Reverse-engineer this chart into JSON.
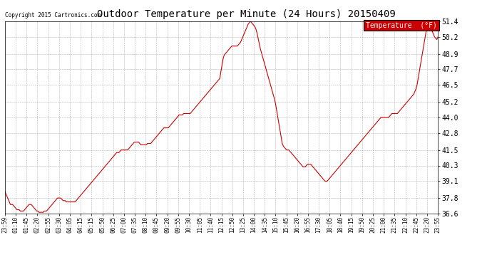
{
  "title": "Outdoor Temperature per Minute (24 Hours) 20150409",
  "copyright": "Copyright 2015 Cartronics.com",
  "legend_label": "Temperature  (°F)",
  "line_color": "#cc0000",
  "background_color": "#ffffff",
  "grid_color": "#aaaaaa",
  "yticks": [
    36.6,
    37.8,
    39.1,
    40.3,
    41.5,
    42.8,
    44.0,
    45.2,
    46.5,
    47.7,
    48.9,
    50.2,
    51.4
  ],
  "xtick_labels": [
    "23:59",
    "01:10",
    "01:45",
    "02:20",
    "02:55",
    "03:30",
    "04:05",
    "04:15",
    "05:15",
    "05:50",
    "06:25",
    "07:00",
    "07:35",
    "08:10",
    "08:45",
    "09:20",
    "09:55",
    "10:30",
    "11:05",
    "11:40",
    "12:15",
    "12:50",
    "13:25",
    "14:00",
    "14:35",
    "15:10",
    "15:45",
    "16:20",
    "16:55",
    "17:30",
    "18:05",
    "18:40",
    "19:15",
    "19:50",
    "20:25",
    "21:00",
    "21:35",
    "22:10",
    "22:45",
    "23:20",
    "23:55"
  ],
  "ymin": 36.6,
  "ymax": 51.4,
  "temp_data": [
    38.3,
    38.1,
    37.9,
    37.7,
    37.5,
    37.3,
    37.3,
    37.3,
    37.2,
    37.1,
    37.0,
    36.9,
    36.9,
    36.9,
    36.8,
    36.8,
    36.8,
    36.8,
    36.9,
    37.0,
    37.1,
    37.2,
    37.3,
    37.3,
    37.3,
    37.2,
    37.1,
    37.0,
    36.9,
    36.8,
    36.8,
    36.7,
    36.7,
    36.7,
    36.7,
    36.7,
    36.8,
    36.8,
    36.8,
    36.9,
    37.0,
    37.1,
    37.2,
    37.3,
    37.4,
    37.5,
    37.6,
    37.7,
    37.8,
    37.8,
    37.8,
    37.8,
    37.7,
    37.6,
    37.6,
    37.6,
    37.5,
    37.5,
    37.5,
    37.5,
    37.5,
    37.5,
    37.5,
    37.5,
    37.5,
    37.6,
    37.7,
    37.8,
    37.9,
    38.0,
    38.1,
    38.2,
    38.3,
    38.4,
    38.5,
    38.6,
    38.7,
    38.8,
    38.9,
    39.0,
    39.1,
    39.2,
    39.3,
    39.4,
    39.5,
    39.6,
    39.7,
    39.8,
    39.9,
    40.0,
    40.1,
    40.2,
    40.3,
    40.4,
    40.5,
    40.6,
    40.7,
    40.8,
    40.9,
    41.0,
    41.1,
    41.2,
    41.3,
    41.3,
    41.3,
    41.4,
    41.5,
    41.5,
    41.5,
    41.5,
    41.5,
    41.5,
    41.5,
    41.6,
    41.7,
    41.8,
    41.9,
    42.0,
    42.1,
    42.1,
    42.1,
    42.1,
    42.1,
    42.0,
    41.9,
    41.9,
    41.9,
    41.9,
    41.9,
    41.9,
    42.0,
    42.0,
    42.0,
    42.0,
    42.1,
    42.2,
    42.3,
    42.4,
    42.5,
    42.6,
    42.7,
    42.8,
    42.9,
    43.0,
    43.1,
    43.2,
    43.2,
    43.2,
    43.2,
    43.2,
    43.3,
    43.4,
    43.5,
    43.6,
    43.7,
    43.8,
    43.9,
    44.0,
    44.1,
    44.2,
    44.2,
    44.2,
    44.2,
    44.3,
    44.3,
    44.3,
    44.3,
    44.3,
    44.3,
    44.3,
    44.4,
    44.5,
    44.6,
    44.7,
    44.8,
    44.9,
    45.0,
    45.1,
    45.2,
    45.3,
    45.4,
    45.5,
    45.6,
    45.7,
    45.8,
    45.9,
    46.0,
    46.1,
    46.2,
    46.3,
    46.4,
    46.5,
    46.6,
    46.7,
    46.8,
    46.9,
    47.0,
    47.5,
    48.0,
    48.5,
    48.8,
    48.9,
    49.0,
    49.1,
    49.2,
    49.3,
    49.4,
    49.5,
    49.5,
    49.5,
    49.5,
    49.5,
    49.5,
    49.6,
    49.7,
    49.8,
    50.0,
    50.2,
    50.4,
    50.6,
    50.8,
    51.0,
    51.2,
    51.3,
    51.4,
    51.3,
    51.2,
    51.1,
    51.0,
    50.8,
    50.5,
    50.1,
    49.7,
    49.3,
    49.0,
    48.7,
    48.4,
    48.1,
    47.8,
    47.5,
    47.2,
    46.9,
    46.6,
    46.3,
    46.0,
    45.7,
    45.4,
    45.0,
    44.5,
    44.0,
    43.5,
    43.0,
    42.5,
    42.0,
    41.8,
    41.7,
    41.6,
    41.5,
    41.5,
    41.5,
    41.4,
    41.3,
    41.2,
    41.1,
    41.0,
    40.9,
    40.8,
    40.7,
    40.6,
    40.5,
    40.4,
    40.3,
    40.2,
    40.2,
    40.2,
    40.3,
    40.4,
    40.4,
    40.4,
    40.4,
    40.3,
    40.2,
    40.1,
    40.0,
    39.9,
    39.8,
    39.7,
    39.6,
    39.5,
    39.4,
    39.3,
    39.2,
    39.1,
    39.1,
    39.1,
    39.2,
    39.3,
    39.4,
    39.5,
    39.6,
    39.7,
    39.8,
    39.9,
    40.0,
    40.1,
    40.2,
    40.3,
    40.4,
    40.5,
    40.6,
    40.7,
    40.8,
    40.9,
    41.0,
    41.1,
    41.2,
    41.3,
    41.4,
    41.5,
    41.6,
    41.7,
    41.8,
    41.9,
    42.0,
    42.1,
    42.2,
    42.3,
    42.4,
    42.5,
    42.6,
    42.7,
    42.8,
    42.9,
    43.0,
    43.1,
    43.2,
    43.3,
    43.4,
    43.5,
    43.6,
    43.7,
    43.8,
    43.9,
    44.0,
    44.0,
    44.0,
    44.0,
    44.0,
    44.0,
    44.0,
    44.0,
    44.1,
    44.2,
    44.3,
    44.3,
    44.3,
    44.3,
    44.3,
    44.3,
    44.4,
    44.5,
    44.6,
    44.7,
    44.8,
    44.9,
    45.0,
    45.1,
    45.2,
    45.3,
    45.4,
    45.5,
    45.6,
    45.7,
    45.8,
    46.0,
    46.2,
    46.5,
    47.0,
    47.5,
    48.0,
    48.5,
    49.0,
    49.5,
    50.0,
    50.5,
    51.0,
    51.4,
    51.2,
    51.0,
    50.8,
    50.6,
    50.4,
    50.2,
    50.1,
    50.0,
    50.2
  ]
}
